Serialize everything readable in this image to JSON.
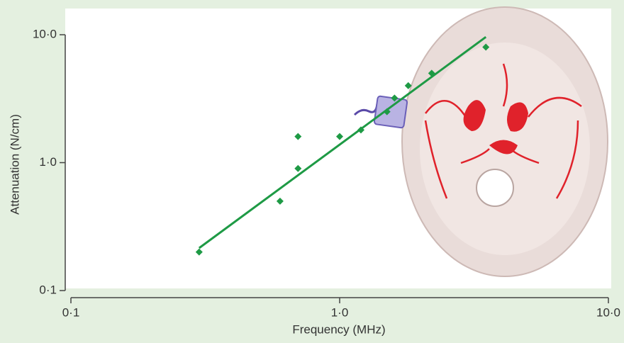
{
  "chart_data": {
    "type": "scatter",
    "xlabel": "Frequency (MHz)",
    "ylabel": "Attenuation (N/cm)",
    "xscale": "log",
    "yscale": "log",
    "x": [
      0.3,
      0.6,
      0.7,
      0.7,
      1.0,
      1.2,
      1.5,
      1.6,
      1.8,
      2.2,
      3.5
    ],
    "values": [
      0.2,
      0.5,
      1.6,
      0.9,
      1.6,
      1.8,
      2.5,
      3.2,
      4.0,
      5.0,
      8.0
    ],
    "color": "#1e9a45",
    "fit_line": {
      "x": [
        0.3,
        3.5
      ],
      "values": [
        0.215,
        9.6
      ]
    },
    "xlim": [
      0.1,
      10
    ],
    "ylim": [
      0.1,
      10
    ],
    "xticks": [
      {
        "value": 0.1,
        "label": "0·1"
      },
      {
        "value": 1,
        "label": "1·0"
      },
      {
        "value": 10,
        "label": "10·0"
      }
    ],
    "yticks": [
      {
        "value": 0.1,
        "label": "0·1"
      },
      {
        "value": 1,
        "label": "1·0"
      },
      {
        "value": 10,
        "label": "10·0"
      }
    ]
  }
}
